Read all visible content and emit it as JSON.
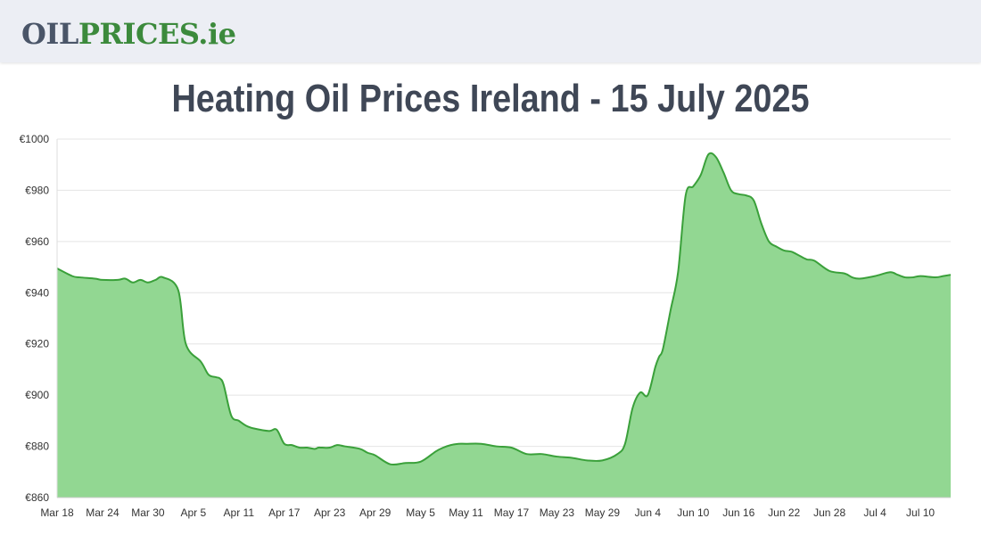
{
  "header": {
    "logo_part_a": "OIL",
    "logo_part_b": "PRICES.ie"
  },
  "page_title": "Heating Oil Prices Ireland - 15 July 2025",
  "chart_data": {
    "type": "area",
    "title": "Heating Oil Prices Ireland - 15 July 2025",
    "xlabel": "",
    "ylabel": "",
    "ylim": [
      860,
      1000
    ],
    "y_ticks": [
      860,
      880,
      900,
      920,
      940,
      960,
      980,
      1000
    ],
    "y_tick_labels": [
      "€860",
      "€880",
      "€900",
      "€920",
      "€940",
      "€960",
      "€980",
      "€1000"
    ],
    "x_range_days": [
      0,
      118
    ],
    "x_ticks": [
      0,
      6,
      12,
      18,
      24,
      30,
      36,
      42,
      48,
      54,
      60,
      66,
      72,
      78,
      84,
      90,
      96,
      102,
      108,
      114
    ],
    "x_tick_labels": [
      "Mar 18",
      "Mar 24",
      "Mar 30",
      "Apr 5",
      "Apr 11",
      "Apr 17",
      "Apr 23",
      "Apr 29",
      "May 5",
      "May 11",
      "May 17",
      "May 23",
      "May 29",
      "Jun 4",
      "Jun 10",
      "Jun 16",
      "Jun 22",
      "Jun 28",
      "Jul 4",
      "Jul 10"
    ],
    "grid": true,
    "colors": {
      "line": "#3aa03a",
      "fill": "#92d792",
      "grid": "#e4e4e4"
    },
    "series": [
      {
        "name": "",
        "x": [
          0,
          2,
          3,
          5,
          6,
          8,
          9,
          10,
          11,
          12,
          13,
          14,
          16,
          17,
          19,
          20,
          21,
          21.5,
          22,
          23,
          24,
          25,
          26,
          28,
          29,
          30,
          31,
          32,
          33,
          34,
          34.5,
          35,
          36,
          37,
          38,
          40,
          41,
          42,
          44,
          46,
          48,
          50,
          51,
          52,
          53,
          54,
          56,
          58,
          60,
          62,
          64,
          66,
          68,
          70,
          72,
          74,
          75,
          76,
          77,
          78,
          79,
          79.5,
          80,
          81,
          82,
          83,
          84,
          85,
          86,
          87,
          88,
          89,
          90,
          91,
          92,
          93,
          94,
          95,
          96,
          97,
          98,
          99,
          100,
          102,
          104,
          105,
          106,
          108,
          110,
          111,
          112,
          113,
          114,
          116,
          117,
          118
        ],
        "values": [
          949.5,
          946.5,
          946,
          945.5,
          945,
          945,
          945.5,
          944,
          945,
          944,
          945,
          946,
          941,
          920,
          913,
          908,
          907,
          906.5,
          904,
          892,
          890,
          888,
          887,
          886,
          886.5,
          881,
          880.5,
          879.5,
          879.5,
          879,
          879.5,
          879.5,
          879.5,
          880.5,
          880,
          879,
          877.5,
          876.5,
          873,
          873.5,
          874,
          878,
          879.5,
          880.5,
          881,
          881,
          881,
          880,
          879.5,
          877,
          877,
          876,
          875.5,
          874.5,
          874.5,
          877,
          881,
          895,
          901,
          900,
          911,
          915,
          918,
          933,
          948,
          978,
          981.5,
          986,
          994,
          993,
          987,
          980,
          978.5,
          978,
          976,
          967,
          960,
          958,
          956.5,
          956,
          954.5,
          953,
          952.5,
          948.5,
          947.5,
          946,
          945.5,
          946.5,
          948,
          947,
          946,
          946,
          946.5,
          946,
          946.5,
          947
        ]
      }
    ]
  }
}
